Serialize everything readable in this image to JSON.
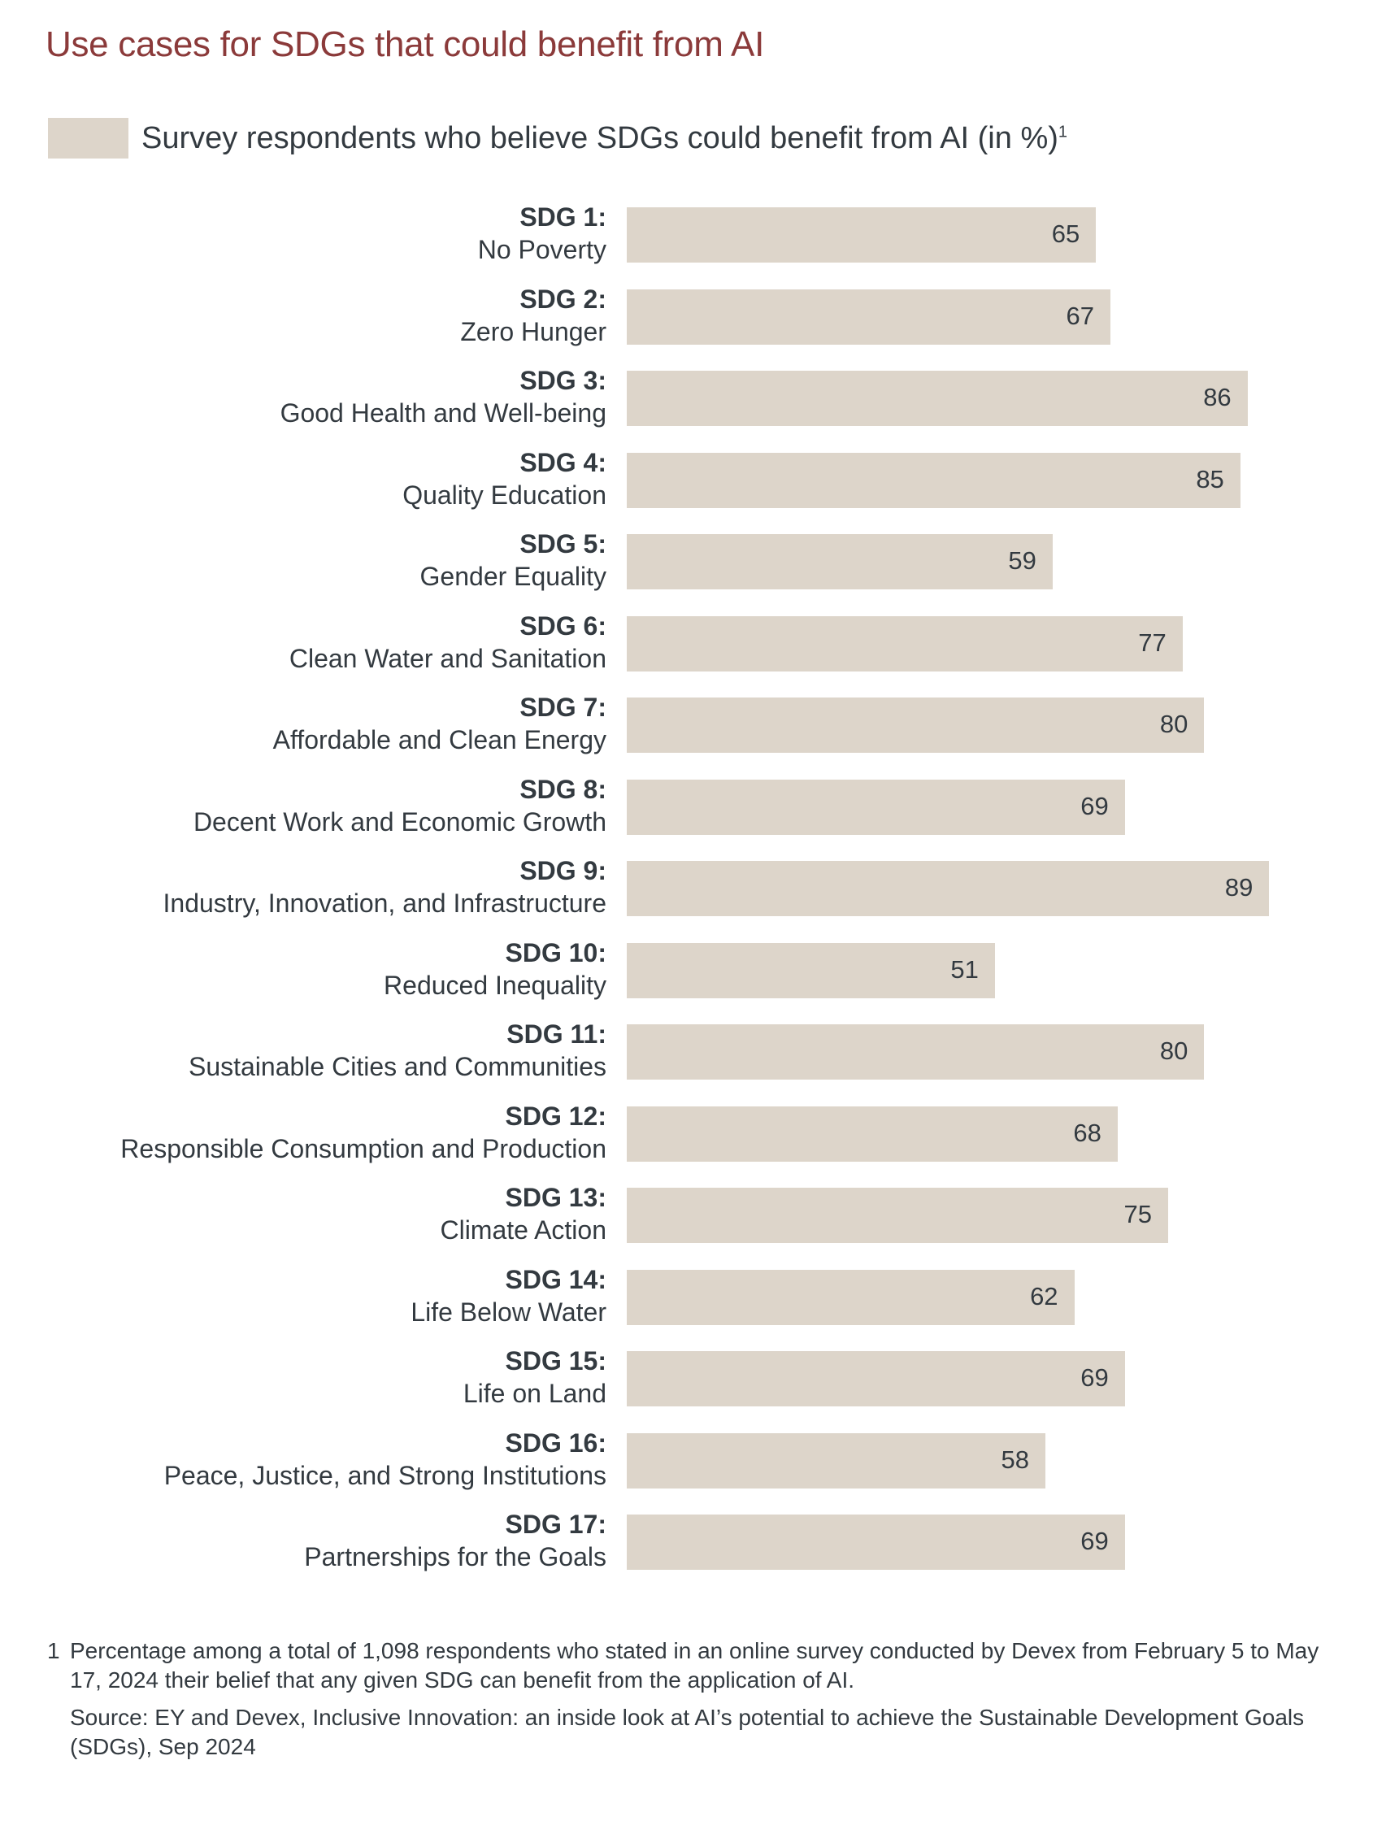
{
  "title": "Use cases for SDGs that could benefit from AI",
  "legend": {
    "label": "Survey respondents who believe SDGs could benefit from AI (in %)",
    "footnote_mark": "1",
    "color": "#ddd5ca"
  },
  "chart_data": {
    "type": "bar",
    "orientation": "horizontal",
    "title": "Use cases for SDGs that could benefit from AI",
    "legend_position": "top-left",
    "grid": false,
    "xlim": [
      0,
      100
    ],
    "bar_color": "#ddd5ca",
    "series": [
      {
        "name": "Survey respondents who believe SDGs could benefit from AI (in %)"
      }
    ],
    "categories": [
      {
        "sdg": "SDG 1:",
        "goal": "No Poverty"
      },
      {
        "sdg": "SDG 2:",
        "goal": "Zero Hunger"
      },
      {
        "sdg": "SDG 3:",
        "goal": "Good Health and Well-being"
      },
      {
        "sdg": "SDG 4:",
        "goal": "Quality Education"
      },
      {
        "sdg": "SDG 5:",
        "goal": "Gender Equality"
      },
      {
        "sdg": "SDG 6:",
        "goal": "Clean Water and Sanitation"
      },
      {
        "sdg": "SDG 7:",
        "goal": "Affordable and Clean Energy"
      },
      {
        "sdg": "SDG 8:",
        "goal": "Decent Work and Economic Growth"
      },
      {
        "sdg": "SDG 9:",
        "goal": "Industry, Innovation, and Infrastructure"
      },
      {
        "sdg": "SDG 10:",
        "goal": "Reduced Inequality"
      },
      {
        "sdg": "SDG 11:",
        "goal": "Sustainable Cities and Communities"
      },
      {
        "sdg": "SDG 12:",
        "goal": "Responsible Consumption and Production"
      },
      {
        "sdg": "SDG 13:",
        "goal": "Climate Action"
      },
      {
        "sdg": "SDG 14:",
        "goal": "Life Below Water"
      },
      {
        "sdg": "SDG 15:",
        "goal": "Life on Land"
      },
      {
        "sdg": "SDG 16:",
        "goal": "Peace, Justice, and Strong Institutions"
      },
      {
        "sdg": "SDG 17:",
        "goal": "Partnerships for the Goals"
      }
    ],
    "values": [
      65,
      67,
      86,
      85,
      59,
      77,
      80,
      69,
      89,
      51,
      80,
      68,
      75,
      62,
      69,
      58,
      69
    ]
  },
  "footnotes": {
    "mark": "1",
    "note": "Percentage among a total of 1,098 respondents who stated in an online survey conducted by Devex from February 5 to May 17, 2024 their belief that any given SDG can benefit from the application of AI.",
    "source": "Source: EY and Devex, Inclusive Innovation: an inside look at AI’s potential to achieve the Sustainable Development Goals (SDGs), Sep 2024"
  }
}
